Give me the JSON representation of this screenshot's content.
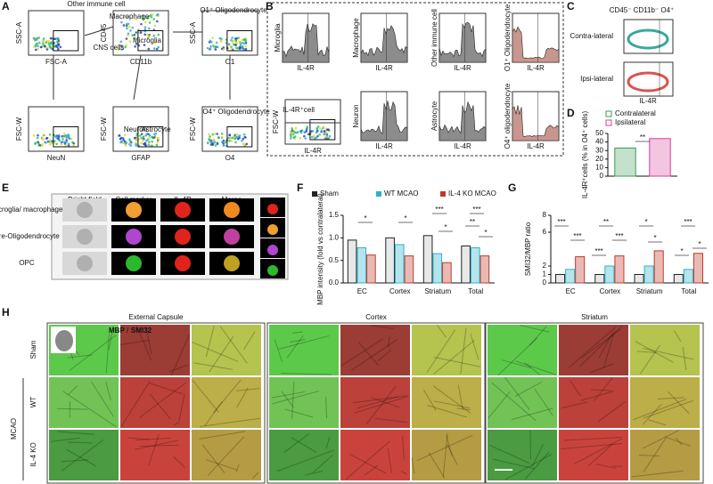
{
  "panel_labels": [
    "A",
    "B",
    "C",
    "D",
    "E",
    "F",
    "G",
    "H"
  ],
  "a": {
    "plots": [
      {
        "y": "SSC-A",
        "x": "FSC-A"
      },
      {
        "y": "CD45",
        "x": "CD11b"
      },
      {
        "y": "SSC-A",
        "x": "O1"
      },
      {
        "y": "FSC-W",
        "x": "NeuN"
      },
      {
        "y": "FSC-W",
        "x": "GFAP"
      },
      {
        "y": "FSC-W",
        "x": "O4"
      },
      {
        "y": "FSC-W",
        "x": "IL-4R"
      }
    ],
    "gates": [
      "Other immune cell",
      "Macrophage",
      "CNS cells",
      "Microglia",
      "O1⁺ Oligodendrocyte",
      "Neuron",
      "Astrocyte",
      "O4⁺ Oligodendrocyte",
      "IL-4R⁺cell"
    ]
  },
  "b": {
    "histograms": [
      {
        "title": "Microglia",
        "x": "IL-4R"
      },
      {
        "title": "Macrophage",
        "x": "IL-4R"
      },
      {
        "title": "Other immune cell",
        "x": "IL-4R"
      },
      {
        "title": "O1⁺ Oligodendrocyte",
        "x": "IL-4R"
      },
      {
        "title": "Neuron",
        "x": "IL-4R"
      },
      {
        "title": "Astrocyte",
        "x": "IL-4R"
      },
      {
        "title": "O4⁺ oligodendrocyte",
        "x": "IL-4R"
      }
    ]
  },
  "c": {
    "title": "CD45⁻ CD11b⁻ O4⁺",
    "rows": [
      "Contra-lateral",
      "Ipsi-lateral"
    ],
    "x": "IL-4R"
  },
  "e": {
    "columns": [
      "Bright field",
      "Cell marker",
      "IL-4R",
      "Merge"
    ],
    "rows": [
      "Microglia/ macrophage",
      "Pre-Oligodendrocyte",
      "OPC"
    ],
    "markers": [
      "IL-4R",
      "CD11b",
      "O4",
      "A2B5"
    ]
  },
  "h": {
    "regions": [
      "External Capsule",
      "Cortex",
      "Striatum"
    ],
    "stain_a": "MBP",
    "stain_sep": "/",
    "stain_b": "SMI32",
    "rows": [
      "Sham",
      "WT",
      "IL-4 KO"
    ],
    "group": "MCAO"
  },
  "chart_data": [
    {
      "type": "bar",
      "ylabel": "IL-4R⁺cells (% in O4⁺ cells)",
      "categories": [
        "Contralateral",
        "Ipsilateral"
      ],
      "values": [
        33,
        44
      ],
      "colors": [
        "#3a9a55",
        "#d63f9a"
      ],
      "ylim": [
        0,
        50
      ],
      "yticks": [
        0,
        10,
        20,
        30,
        40,
        50
      ],
      "annotations": [
        "**"
      ]
    },
    {
      "type": "bar",
      "ylabel": "MBP intensity (fold vs contralateral)",
      "categories": [
        "EC",
        "Cortex",
        "Striatum",
        "Total"
      ],
      "series": [
        {
          "name": "Sham",
          "color": "#222222",
          "values": [
            0.95,
            1.0,
            1.05,
            0.82
          ]
        },
        {
          "name": "WT MCAO",
          "color": "#2bb3c8",
          "values": [
            0.78,
            0.85,
            0.65,
            0.78
          ]
        },
        {
          "name": "IL-4 KO MCAO",
          "color": "#c0392b",
          "values": [
            0.62,
            0.6,
            0.45,
            0.6
          ]
        }
      ],
      "ylim": [
        0,
        1.5
      ],
      "yticks": [
        {
          "value": 0,
          "label": "0.0"
        },
        {
          "value": 0.5,
          "label": "0.5"
        },
        {
          "value": 1,
          "label": "1.0"
        },
        {
          "value": 1.5,
          "label": "1.5"
        }
      ],
      "annotations": [
        "*",
        "*",
        "***",
        "*",
        "***",
        "**",
        "*"
      ]
    },
    {
      "type": "bar",
      "ylabel": "SMI32/MBP ratio",
      "categories": [
        "EC",
        "Cortex",
        "Striatum",
        "Total"
      ],
      "series": [
        {
          "name": "Sham",
          "color": "#222222",
          "values": [
            1.0,
            1.0,
            1.0,
            1.0
          ]
        },
        {
          "name": "WT MCAO",
          "color": "#2bb3c8",
          "values": [
            1.6,
            2.0,
            2.0,
            1.6
          ]
        },
        {
          "name": "IL-4 KO MCAO",
          "color": "#c0392b",
          "values": [
            3.1,
            3.2,
            3.8,
            3.5
          ]
        }
      ],
      "ylim": [
        0,
        8
      ],
      "yticks": [
        0,
        1,
        2,
        6,
        8
      ],
      "annotations": [
        "***",
        "***",
        "**",
        "***",
        "***",
        "*",
        "*",
        "***",
        "*",
        "*"
      ]
    }
  ]
}
